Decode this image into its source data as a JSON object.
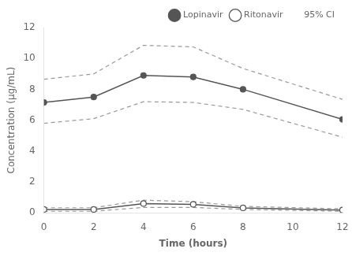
{
  "chart_data": {
    "type": "line",
    "x": [
      0,
      2,
      4,
      6,
      8,
      12
    ],
    "xlabel": "Time (hours)",
    "ylabel": "Concentration (µg/mL)",
    "xlim": [
      0,
      12
    ],
    "ylim": [
      0,
      12
    ],
    "xticks": [
      0,
      2,
      4,
      6,
      8,
      10,
      12
    ],
    "yticks": [
      0,
      2,
      4,
      6,
      8,
      10,
      12
    ],
    "grid": false,
    "legend": "upper right",
    "series": [
      {
        "name": "Lopinavir",
        "color": "#555555",
        "marker": "filled circle",
        "line_style": "solid",
        "values": [
          7.15,
          7.5,
          8.9,
          8.8,
          8.0,
          6.05
        ]
      },
      {
        "name": "Ritonavir",
        "color": "#555555",
        "marker": "open circle",
        "line_style": "solid",
        "values": [
          0.22,
          0.22,
          0.6,
          0.55,
          0.32,
          0.18
        ]
      },
      {
        "name": "95% CI",
        "color": "#999999",
        "marker": "none",
        "line_style": "dashed",
        "values": [
          8.65,
          9.0,
          10.85,
          10.75,
          9.35,
          7.35
        ]
      },
      {
        "name": "95% CI",
        "color": "#999999",
        "marker": "none",
        "line_style": "dashed",
        "values": [
          5.8,
          6.1,
          7.2,
          7.15,
          6.7,
          4.9
        ]
      },
      {
        "name": "95% CI",
        "color": "#999999",
        "marker": "none",
        "line_style": "dashed",
        "values": [
          0.33,
          0.33,
          0.82,
          0.72,
          0.42,
          0.26
        ]
      },
      {
        "name": "95% CI",
        "color": "#999999",
        "marker": "none",
        "line_style": "dashed",
        "values": [
          0.1,
          0.1,
          0.35,
          0.35,
          0.22,
          0.1
        ]
      }
    ]
  }
}
